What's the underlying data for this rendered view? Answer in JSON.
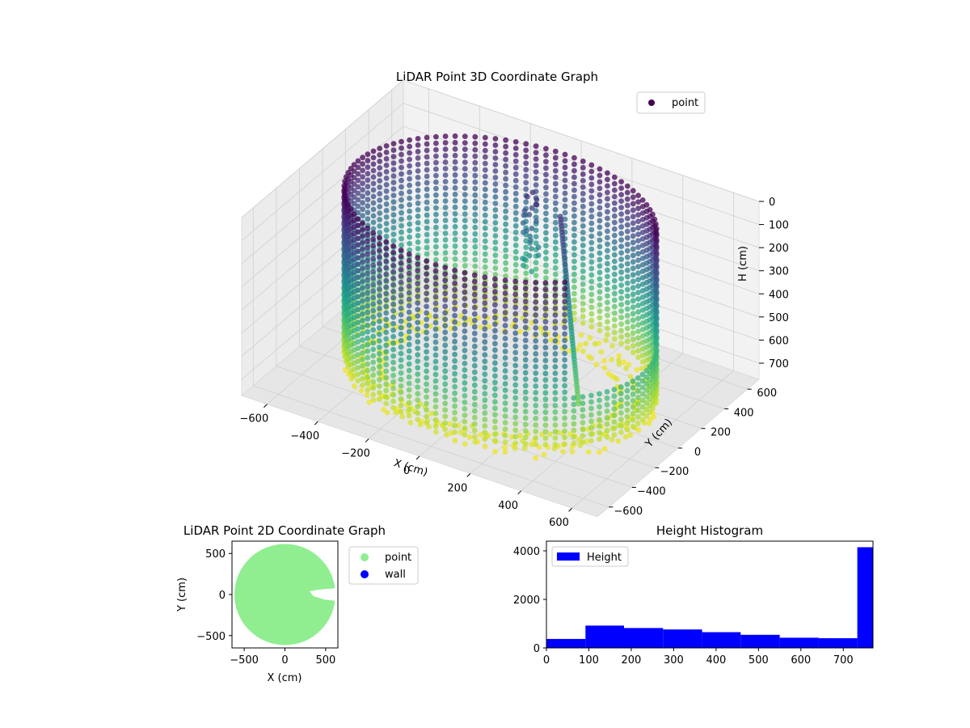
{
  "chart_data": [
    {
      "type": "scatter",
      "projection": "3d",
      "title": "LiDAR Point 3D Coordinate Graph",
      "xlabel": "X (cm)",
      "ylabel": "Y (cm)",
      "zlabel": "H (cm)",
      "xlim": [
        -700,
        700
      ],
      "ylim": [
        -700,
        700
      ],
      "zlim": [
        0,
        770
      ],
      "z_axis_inverted": true,
      "xticks": [
        "−600",
        "−400",
        "−200",
        "0",
        "200",
        "400",
        "600"
      ],
      "yticks": [
        "−600",
        "−400",
        "−200",
        "0",
        "200",
        "400",
        "600"
      ],
      "zticks": [
        "0",
        "100",
        "200",
        "300",
        "400",
        "500",
        "600",
        "700"
      ],
      "colormap": "viridis",
      "grid": true,
      "legend_position": "top-right",
      "series": [
        {
          "name": "point",
          "color": "#440154",
          "description_points": {
            "wall_radius_cm": 560,
            "wall_height_range_cm": [
              0,
              770
            ],
            "ground_height_cm": 760,
            "opening_angle_deg": [
              -40,
              20
            ]
          }
        }
      ]
    },
    {
      "type": "scatter",
      "title": "LiDAR Point 2D Coordinate Graph",
      "xlabel": "X (cm)",
      "ylabel": "Y (cm)",
      "xlim": [
        -650,
        650
      ],
      "ylim": [
        -650,
        650
      ],
      "xticks": [
        "−500",
        "0",
        "500"
      ],
      "yticks": [
        "500",
        "0",
        "−500"
      ],
      "legend_position": "outside-right",
      "series": [
        {
          "name": "point",
          "color": "#90ee90",
          "shape": "disc radius 620 with notch at x 300-650, y -80-80"
        },
        {
          "name": "wall",
          "color": "#0000ff"
        }
      ]
    },
    {
      "type": "bar",
      "title": "Height Histogram",
      "xlabel": "",
      "ylabel": "",
      "xlim": [
        0,
        770
      ],
      "ylim": [
        0,
        4400
      ],
      "xticks": [
        "0",
        "100",
        "200",
        "300",
        "400",
        "500",
        "600",
        "700"
      ],
      "yticks": [
        "0",
        "2000",
        "4000"
      ],
      "legend_position": "top-left",
      "bin_edges": [
        0,
        92,
        183,
        275,
        367,
        458,
        550,
        642,
        733,
        770
      ],
      "series": [
        {
          "name": "Height",
          "color": "#0000ff",
          "values": [
            370,
            920,
            820,
            760,
            650,
            540,
            420,
            400,
            4150
          ]
        }
      ]
    }
  ]
}
